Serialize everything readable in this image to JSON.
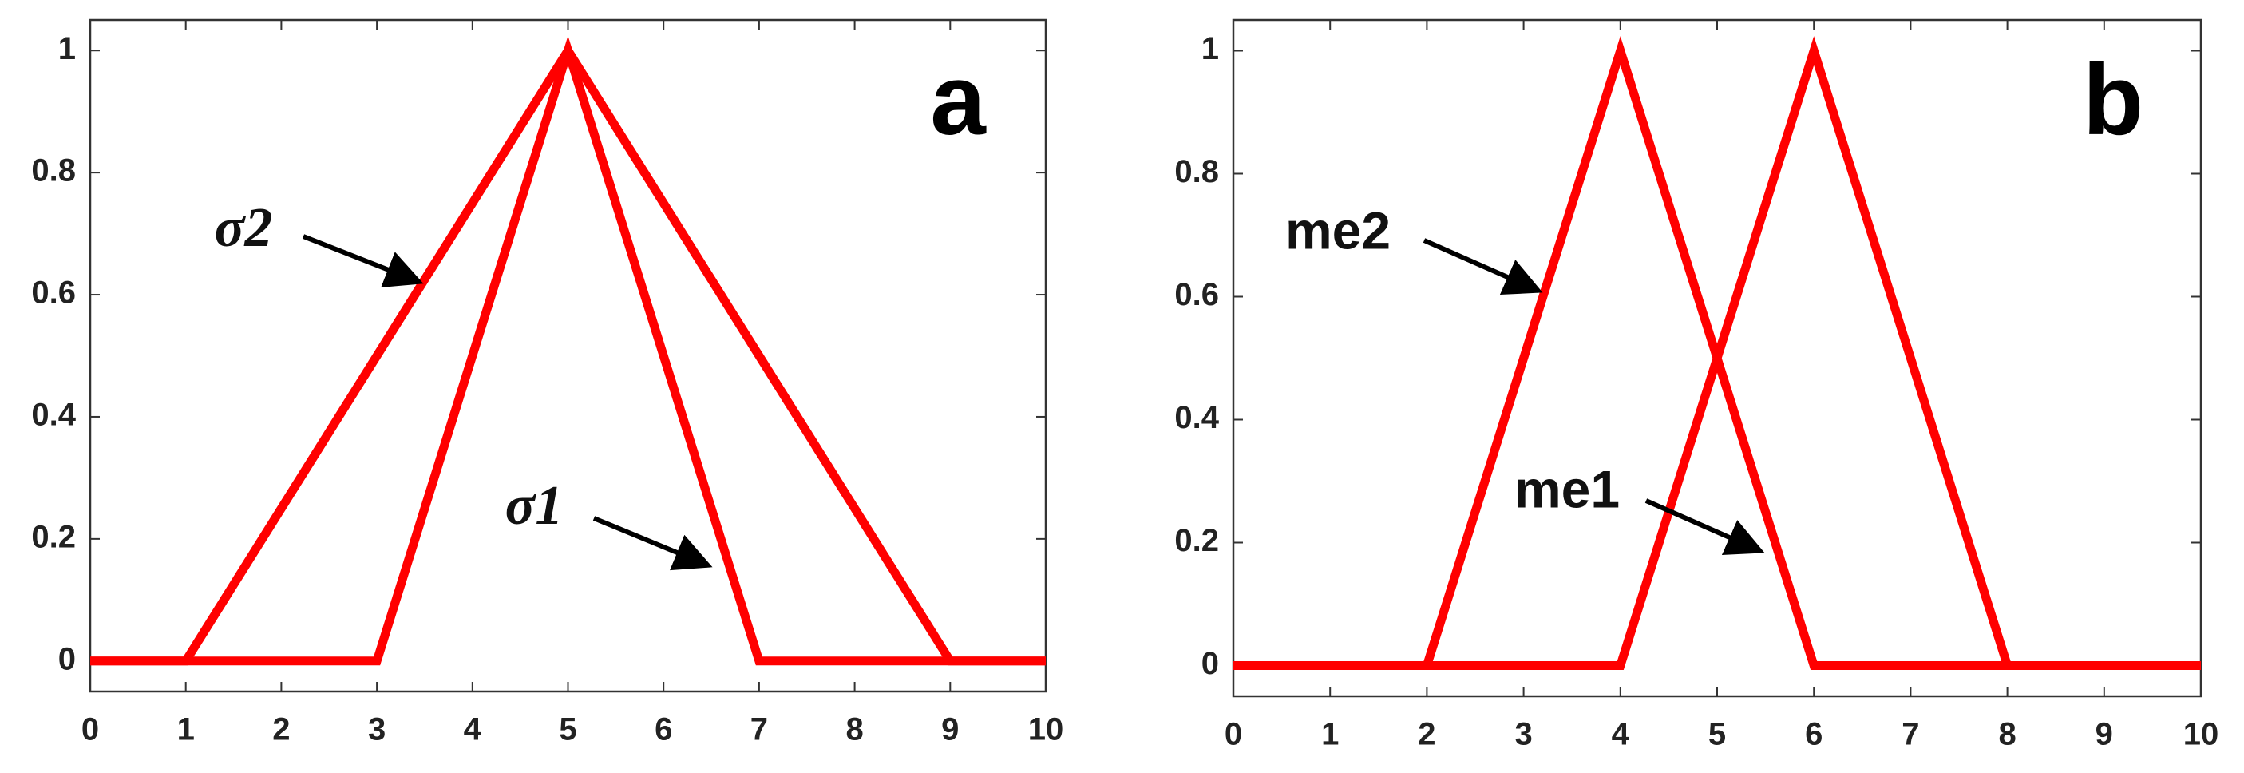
{
  "chart_data": [
    {
      "type": "line",
      "panel_label": "a",
      "xlim": [
        0,
        10
      ],
      "xticks": [
        0,
        1,
        2,
        3,
        4,
        5,
        6,
        7,
        8,
        9,
        10
      ],
      "ylim": [
        -0.05,
        1.05
      ],
      "yticks": [
        0,
        0.2,
        0.4,
        0.6,
        0.8,
        1
      ],
      "grid": false,
      "series": [
        {
          "name": "σ1",
          "color": "#ff0000",
          "x": [
            0,
            3,
            5,
            7,
            10
          ],
          "values": [
            0,
            0,
            1,
            0,
            0
          ]
        },
        {
          "name": "σ2",
          "color": "#ff0000",
          "x": [
            0,
            1,
            5,
            9,
            10
          ],
          "values": [
            0,
            0,
            1,
            0,
            0
          ]
        }
      ]
    },
    {
      "type": "line",
      "panel_label": "b",
      "xlim": [
        0,
        10
      ],
      "xticks": [
        0,
        1,
        2,
        3,
        4,
        5,
        6,
        7,
        8,
        9,
        10
      ],
      "ylim": [
        -0.05,
        1.05
      ],
      "yticks": [
        0,
        0.2,
        0.4,
        0.6,
        0.8,
        1
      ],
      "grid": false,
      "series": [
        {
          "name": "me1",
          "color": "#ff0000",
          "x": [
            0,
            4,
            6,
            8,
            10
          ],
          "values": [
            0,
            0,
            1,
            0,
            0
          ]
        },
        {
          "name": "me2",
          "color": "#ff0000",
          "x": [
            0,
            2,
            4,
            6,
            10
          ],
          "values": [
            0,
            0,
            1,
            0,
            0
          ]
        }
      ]
    }
  ]
}
